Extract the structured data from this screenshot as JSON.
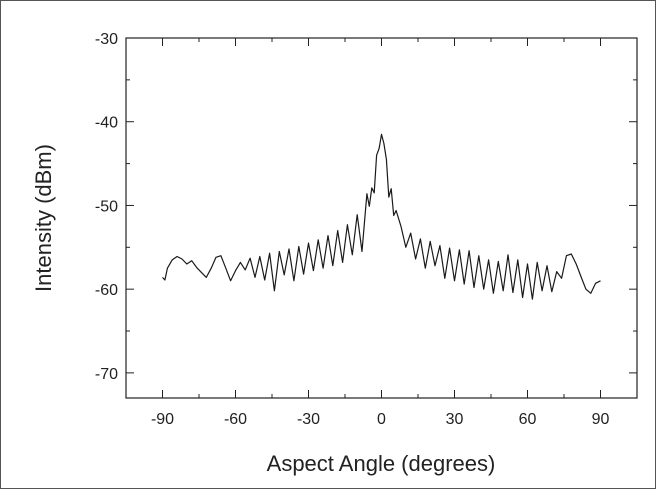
{
  "chart_data": {
    "type": "line",
    "title": "",
    "xlabel": "Aspect Angle (degrees)",
    "ylabel": "Intensity (dBm)",
    "xlim": [
      -105,
      105
    ],
    "ylim": [
      -73,
      -30
    ],
    "xticks": [
      -90,
      -60,
      -30,
      0,
      30,
      60,
      90
    ],
    "yticks": [
      -70,
      -60,
      -50,
      -40,
      -30
    ],
    "grid": false,
    "legend": "none",
    "line_color": "#1a1a1a",
    "series": [
      {
        "x": [
          -90,
          -89,
          -88,
          -86,
          -84,
          -82,
          -80,
          -78,
          -76,
          -74,
          -72,
          -70,
          -68,
          -66,
          -64,
          -62,
          -60,
          -58,
          -56,
          -54,
          -52,
          -50,
          -48,
          -46,
          -44,
          -42,
          -40,
          -38,
          -36,
          -34,
          -32,
          -30,
          -28,
          -26,
          -24,
          -22,
          -20,
          -18,
          -16,
          -14,
          -12,
          -10,
          -8,
          -6,
          -5,
          -4,
          -3,
          -2,
          -1,
          0,
          1,
          2,
          3,
          4,
          5,
          6,
          8,
          10,
          12,
          14,
          16,
          18,
          20,
          22,
          24,
          26,
          28,
          30,
          32,
          34,
          36,
          38,
          40,
          42,
          44,
          46,
          48,
          50,
          52,
          54,
          56,
          58,
          60,
          62,
          64,
          66,
          68,
          70,
          72,
          74,
          76,
          78,
          80,
          82,
          84,
          86,
          88,
          90
        ],
        "y": [
          -58.6,
          -58.9,
          -57.5,
          -56.5,
          -56.1,
          -56.4,
          -57.0,
          -56.6,
          -57.4,
          -58.0,
          -58.6,
          -57.5,
          -56.2,
          -56.0,
          -57.5,
          -59.0,
          -57.8,
          -56.8,
          -57.7,
          -56.3,
          -58.6,
          -56.1,
          -58.9,
          -55.7,
          -60.2,
          -55.5,
          -58.3,
          -55.2,
          -59.0,
          -54.9,
          -58.2,
          -54.5,
          -57.8,
          -54.1,
          -57.5,
          -53.6,
          -57.2,
          -53.0,
          -56.8,
          -52.3,
          -55.9,
          -51.1,
          -55.5,
          -48.6,
          -50.1,
          -47.9,
          -48.5,
          -44.0,
          -43.2,
          -41.5,
          -42.6,
          -44.5,
          -49.0,
          -48.0,
          -51.2,
          -50.6,
          -52.5,
          -55.0,
          -53.3,
          -56.4,
          -54.0,
          -57.5,
          -54.3,
          -57.2,
          -54.8,
          -58.7,
          -55.1,
          -59.0,
          -55.3,
          -59.4,
          -55.4,
          -59.8,
          -56.0,
          -60.0,
          -56.5,
          -60.5,
          -56.7,
          -60.2,
          -55.9,
          -60.4,
          -56.5,
          -61.0,
          -57.0,
          -61.2,
          -56.8,
          -60.2,
          -57.2,
          -60.3,
          -57.9,
          -58.7,
          -56.0,
          -55.8,
          -57.0,
          -58.5,
          -60.0,
          -60.5,
          -59.3,
          -59.0
        ]
      }
    ]
  }
}
